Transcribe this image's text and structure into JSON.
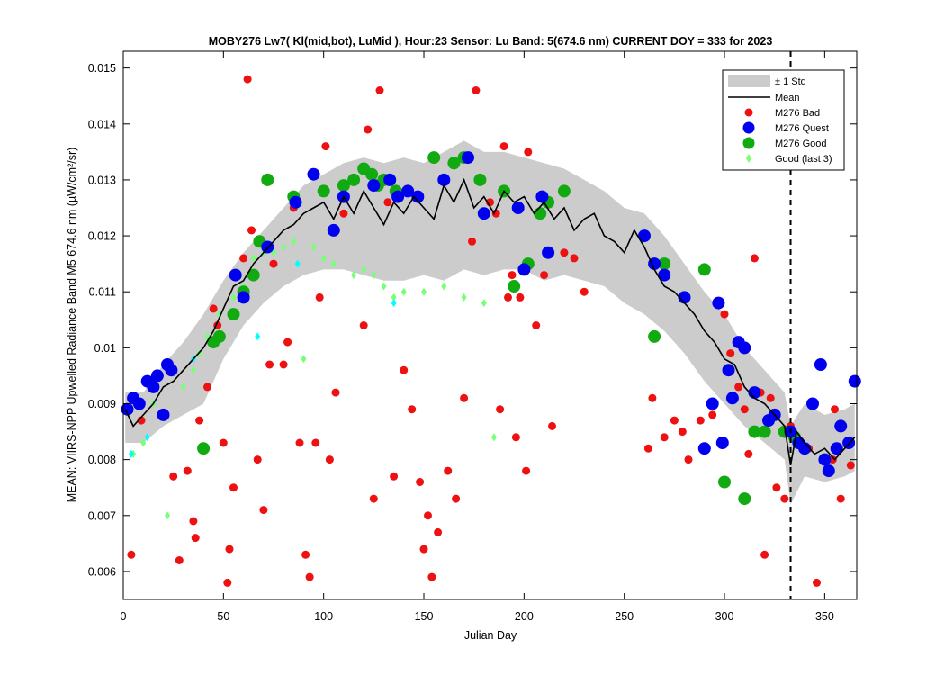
{
  "chart_data": {
    "type": "scatter",
    "title": "MOBY276   Lw7( Kl(mid,bot), LuMid ),   Hour:23 Sensor: Lu Band: 5(674.6 nm)   CURRENT DOY = 333 for 2023",
    "xlabel": "Julian Day",
    "ylabel": "MEAN: VIIRS-NPP Upwelled Radiance Band M5 674.6 nm (µW/cm²/sr)",
    "xlim": [
      0,
      366
    ],
    "ylim": [
      0.0055,
      0.0153
    ],
    "xticks": [
      0,
      50,
      100,
      150,
      200,
      250,
      300,
      350
    ],
    "xtick_labels": [
      "0",
      "50",
      "100",
      "150",
      "200",
      "250",
      "300",
      "350"
    ],
    "yticks": [
      0.006,
      0.007,
      0.008,
      0.009,
      0.01,
      0.011,
      0.012,
      0.013,
      0.014,
      0.015
    ],
    "ytick_labels": [
      "0.006",
      "0.007",
      "0.008",
      "0.009",
      "0.01",
      "0.011",
      "0.012",
      "0.013",
      "0.014",
      "0.015"
    ],
    "current_doy": 333,
    "grid": false,
    "legend_position": "top-right",
    "legend": {
      "std": "± 1 Std",
      "mean": "Mean",
      "bad": "M276 Bad",
      "quest": "M276 Quest",
      "good": "M276 Good",
      "last3": "Good (last 3)"
    },
    "colors": {
      "std": "#cccccc",
      "mean": "#000000",
      "bad": "#ee1111",
      "quest": "#0000ee",
      "good": "#11aa11",
      "last3_a": "#77ff77",
      "last3_b": "#00ffff"
    },
    "mean": {
      "x": [
        1,
        5,
        10,
        15,
        20,
        25,
        30,
        35,
        40,
        45,
        50,
        55,
        60,
        65,
        70,
        75,
        80,
        85,
        90,
        95,
        100,
        105,
        110,
        115,
        120,
        125,
        130,
        135,
        140,
        145,
        150,
        155,
        160,
        165,
        170,
        175,
        180,
        185,
        190,
        195,
        200,
        205,
        210,
        215,
        220,
        225,
        230,
        235,
        240,
        245,
        250,
        255,
        260,
        265,
        270,
        275,
        280,
        285,
        290,
        295,
        300,
        305,
        310,
        315,
        320,
        325,
        330,
        333,
        336,
        340,
        345,
        350,
        355,
        360,
        365
      ],
      "y": [
        0.0089,
        0.0086,
        0.0088,
        0.009,
        0.0093,
        0.0094,
        0.0096,
        0.0098,
        0.01,
        0.0103,
        0.0107,
        0.0111,
        0.0112,
        0.0115,
        0.0117,
        0.0119,
        0.0121,
        0.0122,
        0.0124,
        0.0125,
        0.0126,
        0.0123,
        0.0127,
        0.0124,
        0.0128,
        0.0125,
        0.0122,
        0.0126,
        0.0124,
        0.0127,
        0.0125,
        0.0123,
        0.0129,
        0.0126,
        0.013,
        0.0125,
        0.0127,
        0.0124,
        0.0128,
        0.0126,
        0.0127,
        0.0124,
        0.0126,
        0.0123,
        0.0125,
        0.0121,
        0.0123,
        0.0124,
        0.012,
        0.0119,
        0.0117,
        0.0121,
        0.0118,
        0.0114,
        0.0111,
        0.011,
        0.0108,
        0.0106,
        0.0103,
        0.0101,
        0.0098,
        0.0097,
        0.0093,
        0.0091,
        0.009,
        0.0088,
        0.0086,
        0.0079,
        0.0085,
        0.0083,
        0.0081,
        0.0082,
        0.008,
        0.0082,
        0.0084
      ]
    },
    "std": {
      "x": [
        1,
        10,
        20,
        30,
        40,
        50,
        60,
        70,
        80,
        90,
        100,
        110,
        120,
        130,
        140,
        150,
        160,
        170,
        180,
        190,
        200,
        210,
        220,
        230,
        240,
        250,
        260,
        270,
        280,
        290,
        300,
        310,
        320,
        330,
        333,
        340,
        350,
        360,
        365
      ],
      "upper": [
        0.0092,
        0.0092,
        0.0097,
        0.0101,
        0.0106,
        0.0112,
        0.0117,
        0.0121,
        0.0125,
        0.0129,
        0.0131,
        0.0133,
        0.0134,
        0.0133,
        0.0134,
        0.0133,
        0.0135,
        0.0137,
        0.0135,
        0.0135,
        0.0134,
        0.0133,
        0.0132,
        0.013,
        0.0128,
        0.0125,
        0.0124,
        0.012,
        0.0115,
        0.011,
        0.0106,
        0.01,
        0.0096,
        0.0092,
        0.0086,
        0.009,
        0.0088,
        0.0089,
        0.009
      ],
      "lower": [
        0.0083,
        0.0083,
        0.0086,
        0.0088,
        0.009,
        0.0098,
        0.0104,
        0.0108,
        0.0111,
        0.0113,
        0.0114,
        0.0114,
        0.0113,
        0.0112,
        0.0112,
        0.0113,
        0.0112,
        0.0114,
        0.0113,
        0.0114,
        0.0114,
        0.0112,
        0.0113,
        0.0112,
        0.0111,
        0.0108,
        0.0106,
        0.0103,
        0.0099,
        0.0094,
        0.009,
        0.0086,
        0.0083,
        0.008,
        0.0072,
        0.0077,
        0.0076,
        0.0077,
        0.0078
      ]
    },
    "series": [
      {
        "name": "M276 Bad",
        "x": [
          4,
          9,
          25,
          28,
          32,
          35,
          36,
          38,
          42,
          45,
          47,
          50,
          52,
          53,
          55,
          60,
          62,
          64,
          67,
          70,
          73,
          75,
          80,
          82,
          85,
          88,
          91,
          93,
          96,
          98,
          101,
          103,
          106,
          110,
          115,
          120,
          122,
          125,
          128,
          132,
          135,
          140,
          144,
          148,
          150,
          152,
          154,
          157,
          162,
          166,
          170,
          174,
          176,
          183,
          186,
          188,
          190,
          192,
          194,
          196,
          198,
          201,
          202,
          206,
          210,
          214,
          220,
          225,
          230,
          262,
          264,
          270,
          275,
          279,
          282,
          288,
          294,
          300,
          303,
          307,
          310,
          312,
          315,
          318,
          320,
          323,
          326,
          330,
          333,
          342,
          346,
          354,
          355,
          358,
          363
        ],
        "y": [
          0.0063,
          0.0087,
          0.0077,
          0.0062,
          0.0078,
          0.0069,
          0.0066,
          0.0087,
          0.0093,
          0.0107,
          0.0104,
          0.0083,
          0.0058,
          0.0064,
          0.0075,
          0.0116,
          0.0148,
          0.0121,
          0.008,
          0.0071,
          0.0097,
          0.0115,
          0.0097,
          0.0101,
          0.0125,
          0.0083,
          0.0063,
          0.0059,
          0.0083,
          0.0109,
          0.0136,
          0.008,
          0.0092,
          0.0124,
          0.013,
          0.0104,
          0.0139,
          0.0073,
          0.0146,
          0.0126,
          0.0077,
          0.0096,
          0.0089,
          0.0076,
          0.0064,
          0.007,
          0.0059,
          0.0067,
          0.0078,
          0.0073,
          0.0091,
          0.0119,
          0.0146,
          0.0126,
          0.0124,
          0.0089,
          0.0136,
          0.0109,
          0.0113,
          0.0084,
          0.0109,
          0.0078,
          0.0135,
          0.0104,
          0.0113,
          0.0086,
          0.0117,
          0.0116,
          0.011,
          0.0082,
          0.0091,
          0.0084,
          0.0087,
          0.0085,
          0.008,
          0.0087,
          0.0088,
          0.0106,
          0.0099,
          0.0093,
          0.0089,
          0.0081,
          0.0116,
          0.0092,
          0.0063,
          0.0091,
          0.0075,
          0.0073,
          0.0086,
          0.0082,
          0.0058,
          0.008,
          0.0089,
          0.0073,
          0.0079
        ]
      },
      {
        "name": "M276 Quest",
        "x": [
          2,
          5,
          8,
          12,
          15,
          17,
          20,
          22,
          24,
          56,
          60,
          72,
          86,
          95,
          105,
          110,
          125,
          133,
          137,
          142,
          147,
          160,
          172,
          180,
          197,
          200,
          209,
          212,
          260,
          265,
          270,
          280,
          290,
          294,
          297,
          299,
          302,
          304,
          307,
          310,
          315,
          322,
          325,
          333,
          337,
          340,
          344,
          348,
          350,
          352,
          356,
          358,
          362,
          365
        ],
        "y": [
          0.0089,
          0.0091,
          0.009,
          0.0094,
          0.0093,
          0.0095,
          0.0088,
          0.0097,
          0.0096,
          0.0113,
          0.0109,
          0.0118,
          0.0126,
          0.0131,
          0.0121,
          0.0127,
          0.0129,
          0.013,
          0.0127,
          0.0128,
          0.0127,
          0.013,
          0.0134,
          0.0124,
          0.0125,
          0.0114,
          0.0127,
          0.0117,
          0.012,
          0.0115,
          0.0113,
          0.0109,
          0.0082,
          0.009,
          0.0108,
          0.0083,
          0.0096,
          0.0091,
          0.0101,
          0.01,
          0.0092,
          0.0087,
          0.0088,
          0.0085,
          0.0083,
          0.0082,
          0.009,
          0.0097,
          0.008,
          0.0078,
          0.0082,
          0.0086,
          0.0083,
          0.0094
        ]
      },
      {
        "name": "M276 Good",
        "x": [
          40,
          45,
          48,
          55,
          60,
          65,
          68,
          72,
          85,
          100,
          110,
          115,
          120,
          124,
          127,
          130,
          136,
          155,
          165,
          170,
          178,
          190,
          195,
          202,
          208,
          212,
          220,
          265,
          270,
          290,
          300,
          310,
          315,
          320,
          330,
          335
        ],
        "y": [
          0.0082,
          0.0101,
          0.0102,
          0.0106,
          0.011,
          0.0113,
          0.0119,
          0.013,
          0.0127,
          0.0128,
          0.0129,
          0.013,
          0.0132,
          0.0131,
          0.0129,
          0.013,
          0.0128,
          0.0134,
          0.0133,
          0.0134,
          0.013,
          0.0128,
          0.0111,
          0.0115,
          0.0124,
          0.0126,
          0.0128,
          0.0102,
          0.0115,
          0.0114,
          0.0076,
          0.0073,
          0.0085,
          0.0085,
          0.0085,
          0.0084
        ]
      },
      {
        "name": "Good (last 3)",
        "x": [
          5,
          10,
          15,
          22,
          30,
          35,
          38,
          42,
          48,
          55,
          60,
          65,
          70,
          75,
          80,
          85,
          90,
          95,
          100,
          105,
          115,
          120,
          125,
          130,
          135,
          140,
          150,
          160,
          170,
          180,
          185
        ],
        "y": [
          0.0081,
          0.0083,
          0.009,
          0.007,
          0.0093,
          0.0096,
          0.0099,
          0.0102,
          0.0106,
          0.0109,
          0.0111,
          0.0116,
          0.0117,
          0.0117,
          0.0118,
          0.0119,
          0.0098,
          0.0118,
          0.0116,
          0.0115,
          0.0113,
          0.0114,
          0.0113,
          0.0111,
          0.0109,
          0.011,
          0.011,
          0.0111,
          0.0109,
          0.0108,
          0.0084
        ]
      }
    ],
    "cyan_points": {
      "x": [
        4,
        12,
        35,
        67,
        87,
        135
      ],
      "y": [
        0.0081,
        0.0084,
        0.0098,
        0.0102,
        0.0115,
        0.0108
      ]
    }
  }
}
